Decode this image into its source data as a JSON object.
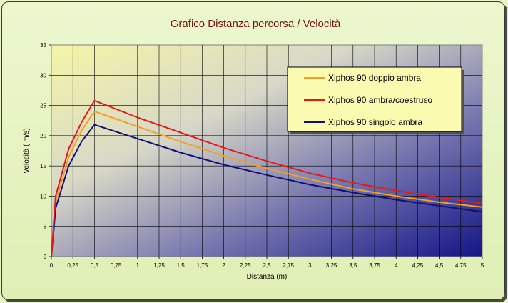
{
  "chart_data": {
    "type": "line",
    "title": "Grafico Distanza percorsa / Velocità",
    "xlabel": "Distanza (m)",
    "ylabel": "Velocità ( m/s)",
    "xlim": [
      0,
      5
    ],
    "ylim": [
      0,
      35
    ],
    "x_ticks": [
      "0",
      "0,25",
      "0,5",
      "0,75",
      "1",
      "1,25",
      "1,5",
      "1,75",
      "2",
      "2,25",
      "2,5",
      "2,75",
      "3",
      "3,25",
      "3,5",
      "3,75",
      "4",
      "4,25",
      "4,5",
      "4,75",
      "5"
    ],
    "y_ticks": [
      "0",
      "5",
      "10",
      "15",
      "20",
      "25",
      "30",
      "35"
    ],
    "grid": true,
    "legend_position": "top-right",
    "series": [
      {
        "name": "Xiphos 90 doppio ambra",
        "color": "#f4a020",
        "points": [
          [
            0,
            0
          ],
          [
            0.05,
            9.0
          ],
          [
            0.2,
            16.5
          ],
          [
            0.35,
            20.8
          ],
          [
            0.5,
            24.0
          ],
          [
            1.0,
            21.5
          ],
          [
            1.5,
            19.0
          ],
          [
            2.0,
            16.7
          ],
          [
            2.5,
            14.6
          ],
          [
            3.0,
            12.8
          ],
          [
            3.5,
            11.2
          ],
          [
            4.0,
            10.0
          ],
          [
            4.5,
            9.0
          ],
          [
            5.0,
            8.2
          ]
        ]
      },
      {
        "name": "Xiphos 90 ambra/coestruso",
        "color": "#e41a1a",
        "points": [
          [
            0,
            0
          ],
          [
            0.05,
            10.0
          ],
          [
            0.2,
            17.8
          ],
          [
            0.35,
            22.2
          ],
          [
            0.5,
            25.8
          ],
          [
            1.0,
            23.0
          ],
          [
            1.5,
            20.5
          ],
          [
            2.0,
            18.0
          ],
          [
            2.5,
            15.8
          ],
          [
            3.0,
            13.8
          ],
          [
            3.5,
            12.2
          ],
          [
            4.0,
            10.9
          ],
          [
            4.5,
            9.8
          ],
          [
            5.0,
            8.8
          ]
        ]
      },
      {
        "name": "Xiphos 90 singolo ambra",
        "color": "#10107a",
        "points": [
          [
            0,
            0
          ],
          [
            0.05,
            8.0
          ],
          [
            0.2,
            15.0
          ],
          [
            0.35,
            19.0
          ],
          [
            0.5,
            21.8
          ],
          [
            1.0,
            19.5
          ],
          [
            1.5,
            17.2
          ],
          [
            2.0,
            15.2
          ],
          [
            2.5,
            13.5
          ],
          [
            3.0,
            11.9
          ],
          [
            3.5,
            10.6
          ],
          [
            4.0,
            9.4
          ],
          [
            4.5,
            8.4
          ],
          [
            5.0,
            7.4
          ]
        ]
      }
    ]
  }
}
